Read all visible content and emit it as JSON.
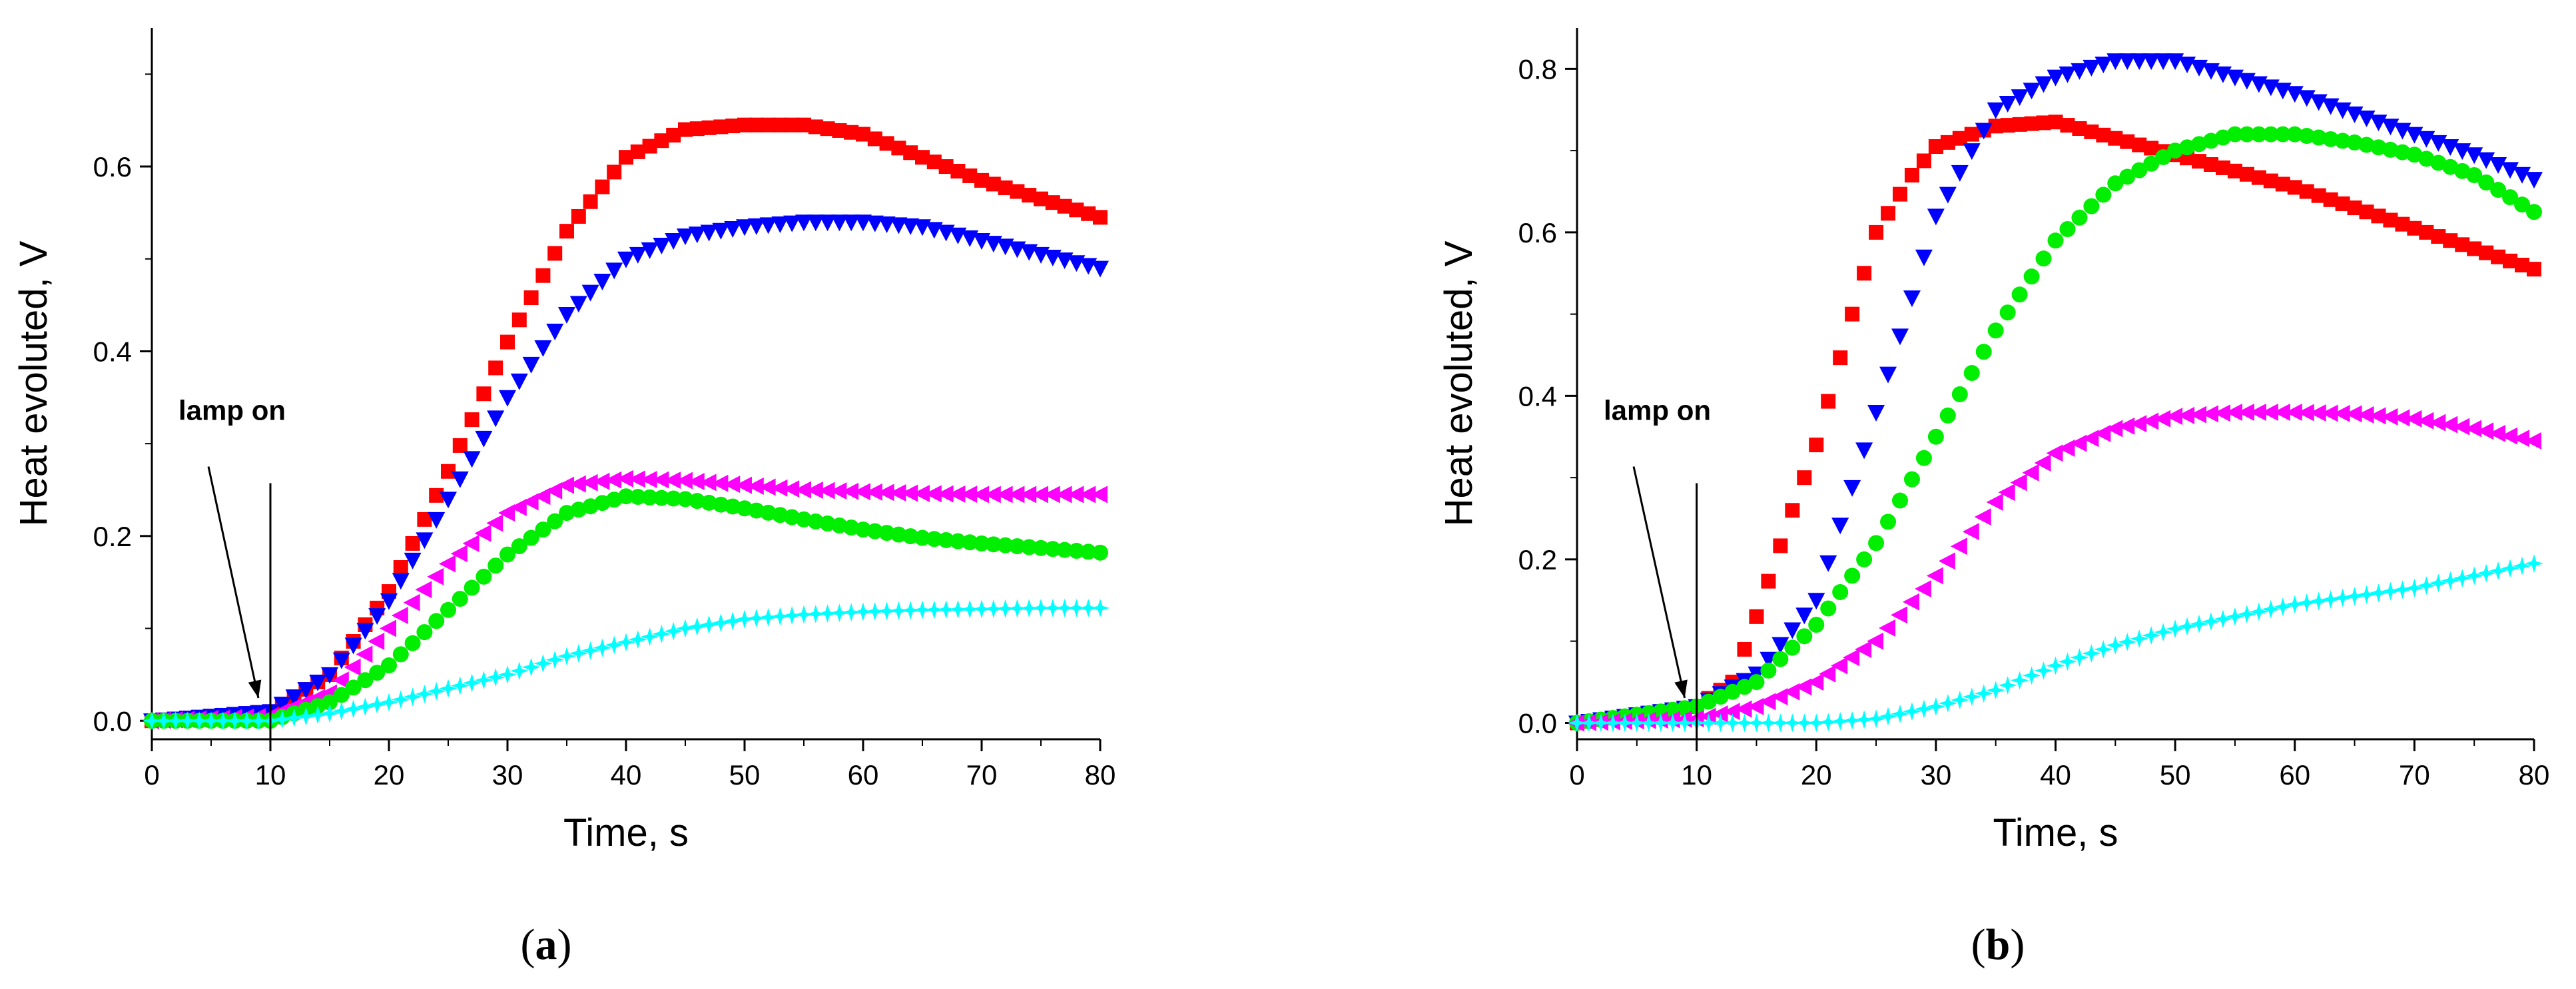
{
  "chart_data": [
    {
      "panel": "a",
      "type": "scatter",
      "caption_letter": "a",
      "xlabel": "Time, s",
      "ylabel": "Heat evoluted, V",
      "xlim": [
        0,
        80
      ],
      "ylim": [
        -0.02,
        0.75
      ],
      "xticks": [
        0,
        10,
        20,
        30,
        40,
        50,
        60,
        70,
        80
      ],
      "yticks": [
        0.0,
        0.2,
        0.4,
        0.6
      ],
      "ytick_labels": [
        "0.0",
        "0.2",
        "0.4",
        "0.6"
      ],
      "annotation": {
        "text": "lamp on",
        "x": 10
      },
      "series": [
        {
          "name": "red squares",
          "marker": "square",
          "color": "#ff0000",
          "points": [
            [
              0,
              0.0
            ],
            [
              10,
              0.01
            ],
            [
              15,
              0.05
            ],
            [
              20,
              0.14
            ],
            [
              25,
              0.27
            ],
            [
              30,
              0.41
            ],
            [
              35,
              0.53
            ],
            [
              40,
              0.61
            ],
            [
              45,
              0.64
            ],
            [
              50,
              0.645
            ],
            [
              55,
              0.645
            ],
            [
              60,
              0.635
            ],
            [
              65,
              0.61
            ],
            [
              70,
              0.585
            ],
            [
              75,
              0.565
            ],
            [
              80,
              0.545
            ]
          ]
        },
        {
          "name": "blue down triangles",
          "marker": "triangle-down",
          "color": "#0000ff",
          "points": [
            [
              0,
              0.0
            ],
            [
              10,
              0.01
            ],
            [
              15,
              0.05
            ],
            [
              20,
              0.13
            ],
            [
              25,
              0.24
            ],
            [
              30,
              0.35
            ],
            [
              35,
              0.44
            ],
            [
              40,
              0.5
            ],
            [
              45,
              0.525
            ],
            [
              50,
              0.535
            ],
            [
              55,
              0.54
            ],
            [
              60,
              0.54
            ],
            [
              65,
              0.535
            ],
            [
              70,
              0.52
            ],
            [
              75,
              0.505
            ],
            [
              80,
              0.49
            ]
          ]
        },
        {
          "name": "magenta left triangles",
          "marker": "triangle-left",
          "color": "#ff00ff",
          "points": [
            [
              0,
              0.0
            ],
            [
              10,
              0.005
            ],
            [
              15,
              0.03
            ],
            [
              20,
              0.1
            ],
            [
              25,
              0.17
            ],
            [
              30,
              0.225
            ],
            [
              35,
              0.255
            ],
            [
              40,
              0.262
            ],
            [
              45,
              0.26
            ],
            [
              50,
              0.255
            ],
            [
              55,
              0.25
            ],
            [
              60,
              0.248
            ],
            [
              65,
              0.246
            ],
            [
              70,
              0.245
            ],
            [
              75,
              0.245
            ],
            [
              80,
              0.245
            ]
          ]
        },
        {
          "name": "green circles",
          "marker": "circle",
          "color": "#00ee00",
          "points": [
            [
              0,
              0.0
            ],
            [
              10,
              0.0
            ],
            [
              15,
              0.02
            ],
            [
              20,
              0.06
            ],
            [
              25,
              0.12
            ],
            [
              30,
              0.18
            ],
            [
              35,
              0.225
            ],
            [
              40,
              0.243
            ],
            [
              45,
              0.24
            ],
            [
              50,
              0.23
            ],
            [
              55,
              0.218
            ],
            [
              60,
              0.207
            ],
            [
              65,
              0.198
            ],
            [
              70,
              0.192
            ],
            [
              75,
              0.187
            ],
            [
              80,
              0.182
            ]
          ]
        },
        {
          "name": "cyan stars",
          "marker": "star",
          "color": "#00ffff",
          "points": [
            [
              0,
              0.0
            ],
            [
              10,
              0.0
            ],
            [
              15,
              0.008
            ],
            [
              20,
              0.02
            ],
            [
              25,
              0.035
            ],
            [
              30,
              0.05
            ],
            [
              35,
              0.07
            ],
            [
              40,
              0.085
            ],
            [
              45,
              0.1
            ],
            [
              50,
              0.11
            ],
            [
              55,
              0.115
            ],
            [
              60,
              0.118
            ],
            [
              65,
              0.12
            ],
            [
              70,
              0.121
            ],
            [
              75,
              0.122
            ],
            [
              80,
              0.122
            ]
          ]
        }
      ]
    },
    {
      "panel": "b",
      "type": "scatter",
      "caption_letter": "b",
      "xlabel": "Time, s",
      "ylabel": "Heat evoluted, V",
      "xlim": [
        0,
        80
      ],
      "ylim": [
        -0.02,
        0.85
      ],
      "xticks": [
        0,
        10,
        20,
        30,
        40,
        50,
        60,
        70,
        80
      ],
      "yticks": [
        0.0,
        0.2,
        0.4,
        0.6,
        0.8
      ],
      "ytick_labels": [
        "0.0",
        "0.2",
        "0.4",
        "0.6",
        "0.8"
      ],
      "annotation": {
        "text": "lamp on",
        "x": 10
      },
      "series": [
        {
          "name": "red squares",
          "marker": "square",
          "color": "#ff0000",
          "points": [
            [
              0,
              0.0
            ],
            [
              10,
              0.02
            ],
            [
              13,
              0.05
            ],
            [
              15,
              0.13
            ],
            [
              18,
              0.26
            ],
            [
              20,
              0.34
            ],
            [
              23,
              0.5
            ],
            [
              25,
              0.6
            ],
            [
              28,
              0.67
            ],
            [
              30,
              0.705
            ],
            [
              35,
              0.73
            ],
            [
              40,
              0.735
            ],
            [
              45,
              0.715
            ],
            [
              50,
              0.695
            ],
            [
              55,
              0.675
            ],
            [
              60,
              0.655
            ],
            [
              65,
              0.63
            ],
            [
              70,
              0.605
            ],
            [
              75,
              0.58
            ],
            [
              80,
              0.555
            ]
          ]
        },
        {
          "name": "blue down triangles",
          "marker": "triangle-down",
          "color": "#0000ff",
          "points": [
            [
              0,
              0.0
            ],
            [
              10,
              0.02
            ],
            [
              15,
              0.06
            ],
            [
              20,
              0.15
            ],
            [
              25,
              0.38
            ],
            [
              28,
              0.52
            ],
            [
              30,
              0.62
            ],
            [
              33,
              0.7
            ],
            [
              35,
              0.75
            ],
            [
              40,
              0.79
            ],
            [
              45,
              0.81
            ],
            [
              50,
              0.81
            ],
            [
              55,
              0.79
            ],
            [
              60,
              0.77
            ],
            [
              65,
              0.745
            ],
            [
              70,
              0.72
            ],
            [
              75,
              0.695
            ],
            [
              80,
              0.665
            ]
          ]
        },
        {
          "name": "green circles",
          "marker": "circle",
          "color": "#00ee00",
          "points": [
            [
              0,
              0.0
            ],
            [
              10,
              0.02
            ],
            [
              15,
              0.05
            ],
            [
              20,
              0.12
            ],
            [
              25,
              0.22
            ],
            [
              30,
              0.35
            ],
            [
              35,
              0.48
            ],
            [
              40,
              0.59
            ],
            [
              45,
              0.66
            ],
            [
              50,
              0.7
            ],
            [
              55,
              0.72
            ],
            [
              60,
              0.72
            ],
            [
              65,
              0.71
            ],
            [
              70,
              0.695
            ],
            [
              75,
              0.67
            ],
            [
              80,
              0.625
            ]
          ]
        },
        {
          "name": "magenta left triangles",
          "marker": "triangle-left",
          "color": "#ff00ff",
          "points": [
            [
              0,
              0.0
            ],
            [
              10,
              0.005
            ],
            [
              15,
              0.02
            ],
            [
              20,
              0.05
            ],
            [
              25,
              0.1
            ],
            [
              30,
              0.18
            ],
            [
              35,
              0.27
            ],
            [
              40,
              0.33
            ],
            [
              45,
              0.36
            ],
            [
              50,
              0.375
            ],
            [
              55,
              0.38
            ],
            [
              60,
              0.38
            ],
            [
              65,
              0.378
            ],
            [
              70,
              0.372
            ],
            [
              75,
              0.36
            ],
            [
              80,
              0.345
            ]
          ]
        },
        {
          "name": "cyan stars",
          "marker": "star",
          "color": "#00ffff",
          "points": [
            [
              0,
              0.0
            ],
            [
              10,
              0.0
            ],
            [
              15,
              0.0
            ],
            [
              20,
              0.0
            ],
            [
              25,
              0.005
            ],
            [
              30,
              0.02
            ],
            [
              35,
              0.04
            ],
            [
              40,
              0.07
            ],
            [
              45,
              0.095
            ],
            [
              50,
              0.115
            ],
            [
              55,
              0.13
            ],
            [
              60,
              0.145
            ],
            [
              65,
              0.155
            ],
            [
              70,
              0.165
            ],
            [
              75,
              0.18
            ],
            [
              80,
              0.195
            ]
          ]
        }
      ]
    }
  ]
}
